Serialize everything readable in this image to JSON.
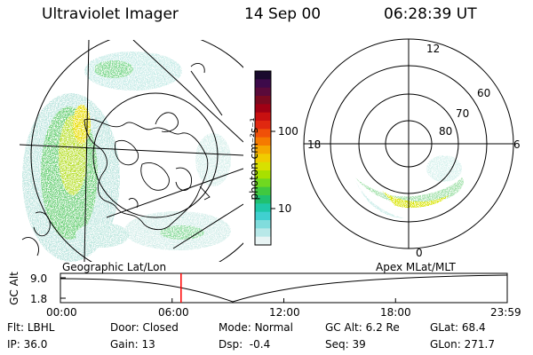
{
  "header": {
    "instrument": "Ultraviolet Imager",
    "date": "14 Sep 00",
    "time": "06:28:39 UT"
  },
  "colorbar": {
    "label": "photon cm⁻²s⁻¹",
    "ticks": [
      "100",
      "10"
    ],
    "colors": [
      "#1a0a2e",
      "#3d0a4a",
      "#5a0a3a",
      "#7a0a20",
      "#a00014",
      "#c81010",
      "#e02810",
      "#f05008",
      "#f57a00",
      "#f5a800",
      "#f0cc00",
      "#d8e000",
      "#a8e000",
      "#70d820",
      "#40c840",
      "#20c070",
      "#20c8a8",
      "#40d0d0",
      "#80dcdc",
      "#b8e8e8",
      "#e8f4f4"
    ]
  },
  "polar": {
    "lat_labels": [
      "60",
      "70",
      "80"
    ],
    "mlt_labels": {
      "top": "12",
      "left": "18",
      "right": "6",
      "bottom": "0"
    }
  },
  "timeline": {
    "left_title": "Geographic Lat/Lon",
    "right_title": "Apex MLat/MLT",
    "y_axis_title": "GC Alt",
    "y_ticks": [
      "9.0",
      "1.8"
    ],
    "x_ticks": [
      "00:00",
      "06:00",
      "12:00",
      "18:00",
      "23:59"
    ],
    "cursor_time_fraction": 0.27
  },
  "info": {
    "row1": [
      {
        "label": "Flt:",
        "value": "LBHL"
      },
      {
        "label": "Door:",
        "value": "Closed"
      },
      {
        "label": "Mode:",
        "value": "Normal"
      },
      {
        "label": "GC Alt:",
        "value": "6.2 Re"
      },
      {
        "label": "GLat:",
        "value": "68.4"
      }
    ],
    "row2": [
      {
        "label": "IP:",
        "value": "36.0"
      },
      {
        "label": "Gain:",
        "value": "13"
      },
      {
        "label": "Dsp:",
        "value": "-0.4"
      },
      {
        "label": "Seq:",
        "value": "39"
      },
      {
        "label": "GLon:",
        "value": "271.7"
      }
    ]
  },
  "accent": {
    "cursor": "#ff0000"
  }
}
